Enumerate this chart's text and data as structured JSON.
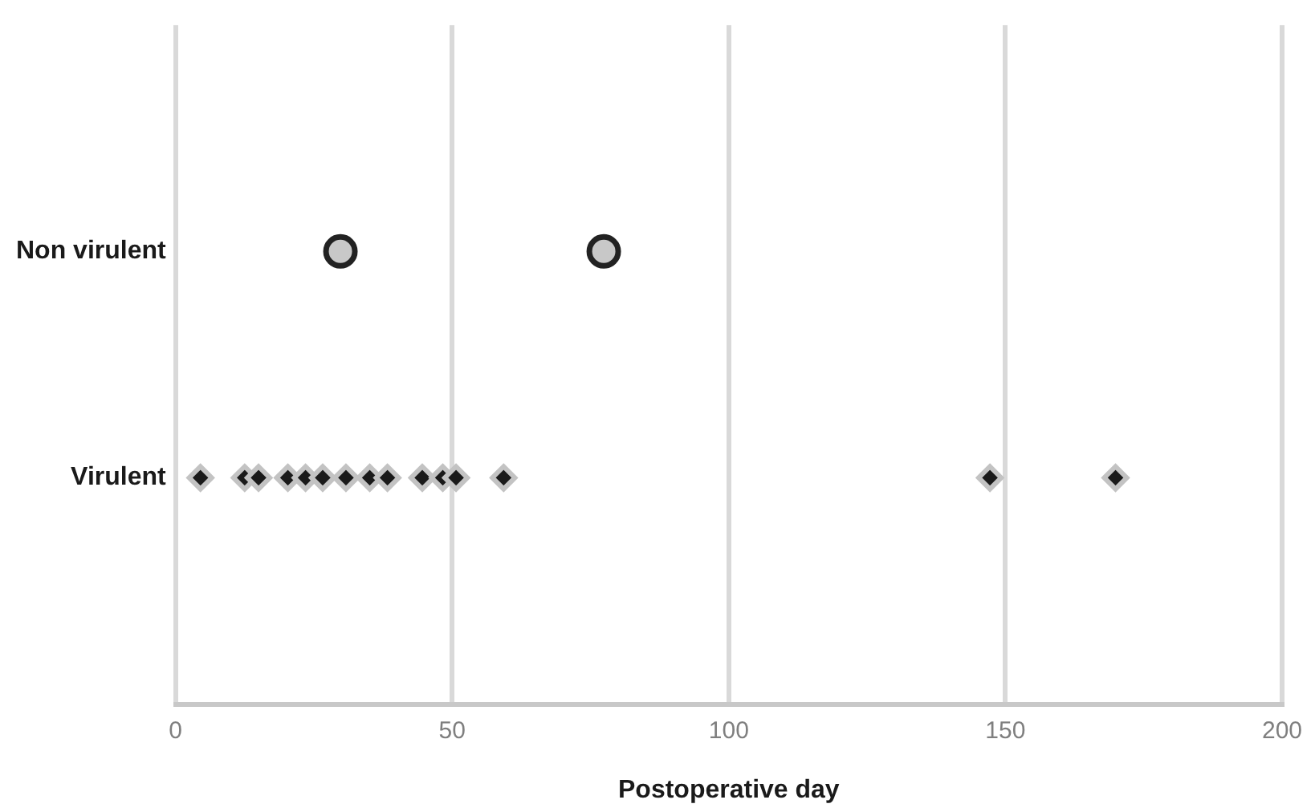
{
  "chart_data": {
    "type": "scatter",
    "orientation": "horizontal",
    "categories": [
      "Non virulent",
      "Virulent"
    ],
    "xlabel": "Postoperative day",
    "xlim": [
      0,
      200
    ],
    "xticks": [
      0,
      50,
      100,
      150,
      200
    ],
    "grid": "x",
    "legend": false,
    "series": [
      {
        "color": "#1a1a1a",
        "marker": "diamond",
        "x": [
          "Virulent",
          "Virulent",
          "Virulent",
          "Virulent",
          "Virulent",
          "Virulent",
          "Virulent",
          "Virulent",
          "Virulent",
          "Virulent",
          "Virulent",
          "Virulent",
          "Virulent",
          "Virulent",
          "Virulent"
        ],
        "values": [
          4.5,
          12.5,
          15,
          20.3,
          23.5,
          26.6,
          30.8,
          35.1,
          38.3,
          44.6,
          48.3,
          50.7,
          59.3,
          147.2,
          169.9
        ]
      },
      {
        "color": "#c8c8c8",
        "marker": "circle",
        "x": [
          "Non virulent",
          "Non virulent"
        ],
        "values": [
          29.8,
          77.4
        ]
      }
    ]
  }
}
